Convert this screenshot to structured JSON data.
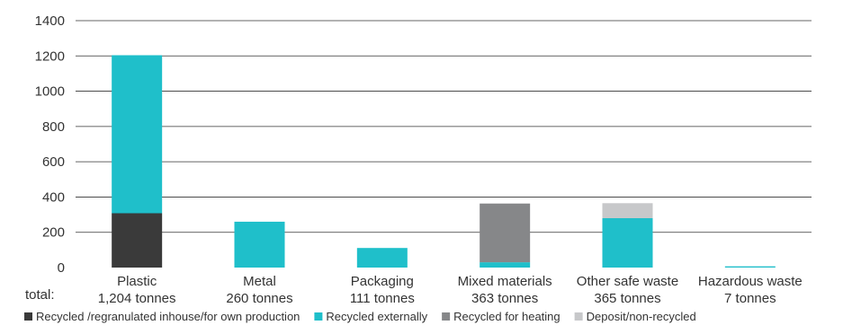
{
  "chart_data": {
    "type": "bar",
    "stacked": true,
    "total_prefix": "total:",
    "categories": [
      "Plastic",
      "Metal",
      "Packaging",
      "Mixed materials",
      "Other safe waste",
      "Hazardous waste"
    ],
    "totals": [
      "1,204 tonnes",
      "260 tonnes",
      "111 tonnes",
      "363 tonnes",
      "365 tonnes",
      "7 tonnes"
    ],
    "series": [
      {
        "name": "Recycled /regranulated inhouse/for own production",
        "color": "#3a3a3a",
        "values": [
          308,
          0,
          0,
          0,
          0,
          0
        ]
      },
      {
        "name": "Recycled externally",
        "color": "#1fbfca",
        "values": [
          896,
          260,
          111,
          30,
          280,
          7
        ]
      },
      {
        "name": "Recycled for heating",
        "color": "#868789",
        "values": [
          0,
          0,
          0,
          333,
          0,
          0
        ]
      },
      {
        "name": "Deposit/non-recycled",
        "color": "#c7c8ca",
        "values": [
          0,
          0,
          0,
          0,
          85,
          0
        ]
      }
    ],
    "ylim": [
      0,
      1400
    ],
    "yticks": [
      "0",
      "200",
      "400",
      "600",
      "800",
      "1000",
      "1200",
      "1400"
    ],
    "grid": true,
    "gridColor": "#333333",
    "legend_position": "bottom"
  }
}
